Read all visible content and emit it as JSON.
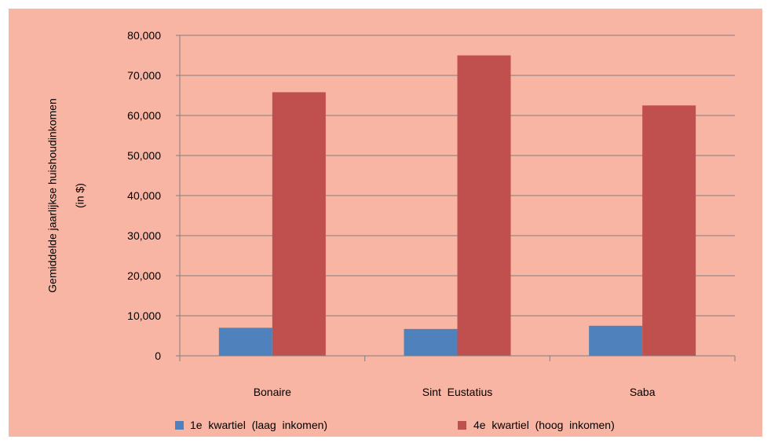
{
  "chart_data": {
    "type": "bar",
    "categories": [
      "Bonaire",
      "Sint  Eustatius",
      "Saba"
    ],
    "series": [
      {
        "name": "1e  kwartiel  (laag  inkomen)",
        "color": "#4f81bd",
        "values": [
          7000,
          6700,
          7500
        ]
      },
      {
        "name": "4e  kwartiel  (hoog  inkomen)",
        "color": "#c0504d",
        "values": [
          65800,
          75000,
          62500
        ]
      }
    ],
    "yticks": [
      0,
      10000,
      20000,
      30000,
      40000,
      50000,
      60000,
      70000,
      80000
    ],
    "ytick_labels": [
      "0",
      "10,000",
      "20,000",
      "30,000",
      "40,000",
      "50,000",
      "60,000",
      "70,000",
      "80,000"
    ],
    "ylim": [
      0,
      80000
    ],
    "ylabel_line1": "Gemiddelde  jaarlijkse  huishoudinkomen",
    "ylabel_line2": "(in  $)",
    "grid": true,
    "legend_position": "bottom"
  }
}
